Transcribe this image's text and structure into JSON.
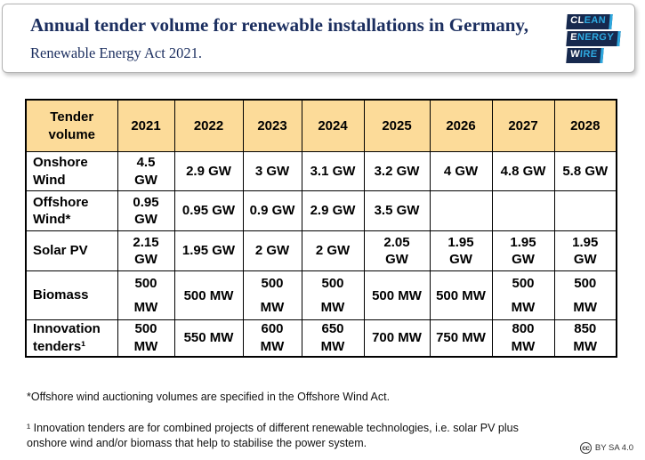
{
  "header": {
    "title_bold": "Annual tender volume for renewable installations in Germany,",
    "title_regular": " Renewable Energy Act 2021.",
    "logo": {
      "lines": [
        {
          "white": "CL",
          "accent": "EAN"
        },
        {
          "white": "E",
          "accent": "NERGY"
        },
        {
          "white": "W",
          "accent": "IRE"
        }
      ]
    }
  },
  "colors": {
    "title_navy": "#1b2e5f",
    "logo_navy": "#17294e",
    "logo_cyan": "#2ea9e0",
    "table_header_bg": "#fcdb99",
    "table_border": "#000000"
  },
  "chart_data": {
    "type": "table",
    "title": "Annual tender volume for renewable installations in Germany, Renewable Energy Act 2021.",
    "corner_header": "Tender\nvolume",
    "columns": [
      "2021",
      "2022",
      "2023",
      "2024",
      "2025",
      "2026",
      "2027",
      "2028"
    ],
    "rows": [
      {
        "label": "Onshore Wind",
        "cells": [
          "4.5\nGW",
          "2.9 GW",
          "3 GW",
          "3.1 GW",
          "3.2 GW",
          "4 GW",
          "4.8 GW",
          "5.8 GW"
        ]
      },
      {
        "label": "Offshore Wind*",
        "cells": [
          "0.95\nGW",
          "0.95 GW",
          "0.9 GW",
          "2.9 GW",
          "3.5 GW",
          "",
          "",
          ""
        ]
      },
      {
        "label": "Solar PV",
        "cells": [
          "2.15\nGW",
          "1.95 GW",
          "2 GW",
          "2 GW",
          "2.05\nGW",
          "1.95\nGW",
          "1.95\nGW",
          "1.95\nGW"
        ]
      },
      {
        "label": "Biomass",
        "cells": [
          "500\nMW",
          "500 MW",
          "500\nMW",
          "500\nMW",
          "500 MW",
          "500 MW",
          "500\nMW",
          "500\nMW"
        ]
      },
      {
        "label": "Innovation tenders¹",
        "cells": [
          "500\nMW",
          "550 MW",
          "600\nMW",
          "650\nMW",
          "700 MW",
          "750 MW",
          "800\nMW",
          "850\nMW"
        ]
      }
    ]
  },
  "footnotes": {
    "line1": "*Offshore wind auctioning volumes are specified in the Offshore Wind Act.",
    "line2": "¹ Innovation tenders are for combined projects of different renewable technologies, i.e. solar PV plus\nonshore wind and/or biomass that help to stabilise the power system."
  },
  "license": {
    "icon": "cc",
    "label": "BY SA 4.0"
  }
}
